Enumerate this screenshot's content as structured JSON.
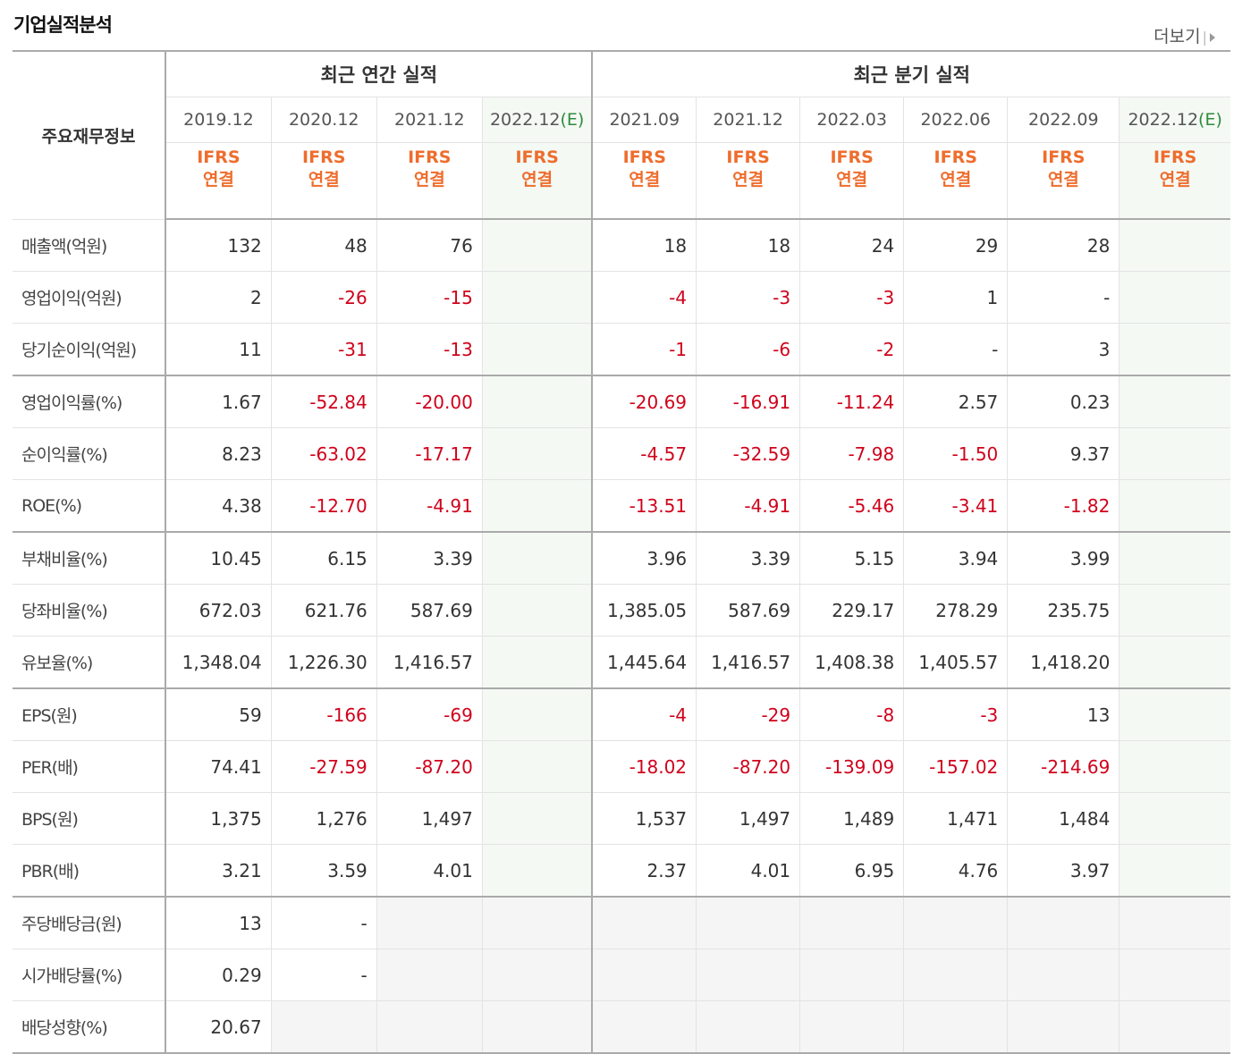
{
  "title": "기업실적분석",
  "more_label": "더보기",
  "table": {
    "label_header": "주요재무정보",
    "group_annual": "최근 연간 실적",
    "group_quarter": "최근 분기 실적",
    "periods": [
      "2019.12",
      "2020.12",
      "2021.12",
      "2022.12",
      "2021.09",
      "2021.12",
      "2022.03",
      "2022.06",
      "2022.09",
      "2022.12"
    ],
    "estimate_tag": "(E)",
    "ifrs_top": "IFRS",
    "ifrs_bottom": "연결",
    "rows": [
      {
        "label": "매출액(억원)",
        "values": [
          "132",
          "48",
          "76",
          "",
          "18",
          "18",
          "24",
          "29",
          "28",
          ""
        ]
      },
      {
        "label": "영업이익(억원)",
        "values": [
          "2",
          "-26",
          "-15",
          "",
          "-4",
          "-3",
          "-3",
          "1",
          "-",
          ""
        ]
      },
      {
        "label": "당기순이익(억원)",
        "values": [
          "11",
          "-31",
          "-13",
          "",
          "-1",
          "-6",
          "-2",
          "-",
          "3",
          ""
        ]
      },
      {
        "label": "영업이익률(%)",
        "values": [
          "1.67",
          "-52.84",
          "-20.00",
          "",
          "-20.69",
          "-16.91",
          "-11.24",
          "2.57",
          "0.23",
          ""
        ]
      },
      {
        "label": "순이익률(%)",
        "values": [
          "8.23",
          "-63.02",
          "-17.17",
          "",
          "-4.57",
          "-32.59",
          "-7.98",
          "-1.50",
          "9.37",
          ""
        ]
      },
      {
        "label": "ROE(%)",
        "values": [
          "4.38",
          "-12.70",
          "-4.91",
          "",
          "-13.51",
          "-4.91",
          "-5.46",
          "-3.41",
          "-1.82",
          ""
        ]
      },
      {
        "label": "부채비율(%)",
        "values": [
          "10.45",
          "6.15",
          "3.39",
          "",
          "3.96",
          "3.39",
          "5.15",
          "3.94",
          "3.99",
          ""
        ]
      },
      {
        "label": "당좌비율(%)",
        "values": [
          "672.03",
          "621.76",
          "587.69",
          "",
          "1,385.05",
          "587.69",
          "229.17",
          "278.29",
          "235.75",
          ""
        ]
      },
      {
        "label": "유보율(%)",
        "values": [
          "1,348.04",
          "1,226.30",
          "1,416.57",
          "",
          "1,445.64",
          "1,416.57",
          "1,408.38",
          "1,405.57",
          "1,418.20",
          ""
        ]
      },
      {
        "label": "EPS(원)",
        "values": [
          "59",
          "-166",
          "-69",
          "",
          "-4",
          "-29",
          "-8",
          "-3",
          "13",
          ""
        ]
      },
      {
        "label": "PER(배)",
        "values": [
          "74.41",
          "-27.59",
          "-87.20",
          "",
          "-18.02",
          "-87.20",
          "-139.09",
          "-157.02",
          "-214.69",
          ""
        ]
      },
      {
        "label": "BPS(원)",
        "values": [
          "1,375",
          "1,276",
          "1,497",
          "",
          "1,537",
          "1,497",
          "1,489",
          "1,471",
          "1,484",
          ""
        ]
      },
      {
        "label": "PBR(배)",
        "values": [
          "3.21",
          "3.59",
          "4.01",
          "",
          "2.37",
          "4.01",
          "6.95",
          "4.76",
          "3.97",
          ""
        ]
      },
      {
        "label": "주당배당금(원)",
        "values": [
          "13",
          "-",
          "",
          "",
          "",
          "",
          "",
          "",
          "",
          ""
        ]
      },
      {
        "label": "시가배당률(%)",
        "values": [
          "0.29",
          "-",
          "",
          "",
          "",
          "",
          "",
          "",
          "",
          ""
        ]
      },
      {
        "label": "배당성향(%)",
        "values": [
          "20.67",
          "",
          "",
          "",
          "",
          "",
          "",
          "",
          "",
          ""
        ]
      }
    ]
  }
}
